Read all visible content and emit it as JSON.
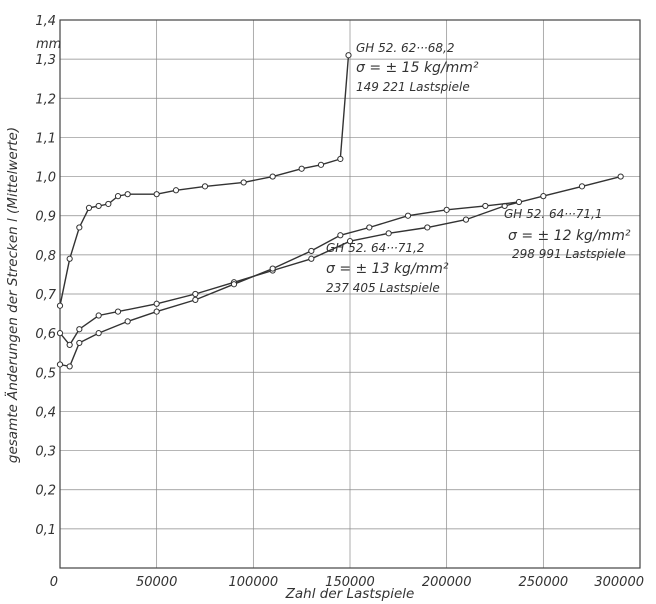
{
  "chart_data": {
    "type": "line",
    "title": "",
    "xlabel": "Zahl der Lastspiele",
    "ylabel": "gesamte Änderungen der Strecken l (Mittelwerte)",
    "yunit": "mm",
    "xlim": [
      0,
      300000
    ],
    "ylim": [
      0,
      1.4
    ],
    "x_ticks": [
      0,
      50000,
      100000,
      150000,
      200000,
      250000,
      300000
    ],
    "x_tick_labels": [
      "0",
      "50000",
      "100000",
      "150000",
      "200000",
      "250000",
      "300000"
    ],
    "y_ticks": [
      0.1,
      0.2,
      0.3,
      0.4,
      0.5,
      0.6,
      0.7,
      0.8,
      0.9,
      1.0,
      1.1,
      1.2,
      1.3,
      1.4
    ],
    "y_tick_labels": [
      "0,1",
      "0,2",
      "0,3",
      "0,4",
      "0,5",
      "0,6",
      "0,7",
      "0,8",
      "0,9",
      "1,0",
      "1,1",
      "1,2",
      "1,3",
      "1,4"
    ],
    "grid": true,
    "series": [
      {
        "name": "GH 52. 62···68,2",
        "stress": "σ = ± 15 kg/mm²",
        "cycles": "149 221 Lastspiele",
        "x": [
          0,
          5000,
          10000,
          15000,
          20000,
          25000,
          30000,
          35000,
          50000,
          60000,
          75000,
          95000,
          110000,
          125000,
          135000,
          145000,
          149221
        ],
        "y": [
          0.67,
          0.79,
          0.87,
          0.92,
          0.925,
          0.93,
          0.95,
          0.955,
          0.955,
          0.965,
          0.975,
          0.985,
          1.0,
          1.02,
          1.03,
          1.045,
          1.31
        ]
      },
      {
        "name": "GH 52. 64···71,1",
        "stress": "σ = ± 12 kg/mm²",
        "cycles": "298 991 Lastspiele",
        "x": [
          0,
          5000,
          10000,
          20000,
          30000,
          50000,
          70000,
          90000,
          110000,
          130000,
          150000,
          170000,
          190000,
          210000,
          230000,
          250000,
          270000,
          290000
        ],
        "y": [
          0.6,
          0.57,
          0.61,
          0.645,
          0.655,
          0.675,
          0.7,
          0.73,
          0.76,
          0.79,
          0.835,
          0.855,
          0.87,
          0.89,
          0.925,
          0.95,
          0.975,
          1.0
        ]
      },
      {
        "name": "GH 52. 64···71,2",
        "stress": "σ = ± 13 kg/mm²",
        "cycles": "237 405 Lastspiele",
        "x": [
          0,
          5000,
          10000,
          20000,
          35000,
          50000,
          70000,
          90000,
          110000,
          130000,
          145000,
          160000,
          180000,
          200000,
          220000,
          237405
        ],
        "y": [
          0.52,
          0.515,
          0.575,
          0.6,
          0.63,
          0.655,
          0.685,
          0.725,
          0.765,
          0.81,
          0.85,
          0.87,
          0.9,
          0.915,
          0.925,
          0.935
        ]
      }
    ]
  }
}
